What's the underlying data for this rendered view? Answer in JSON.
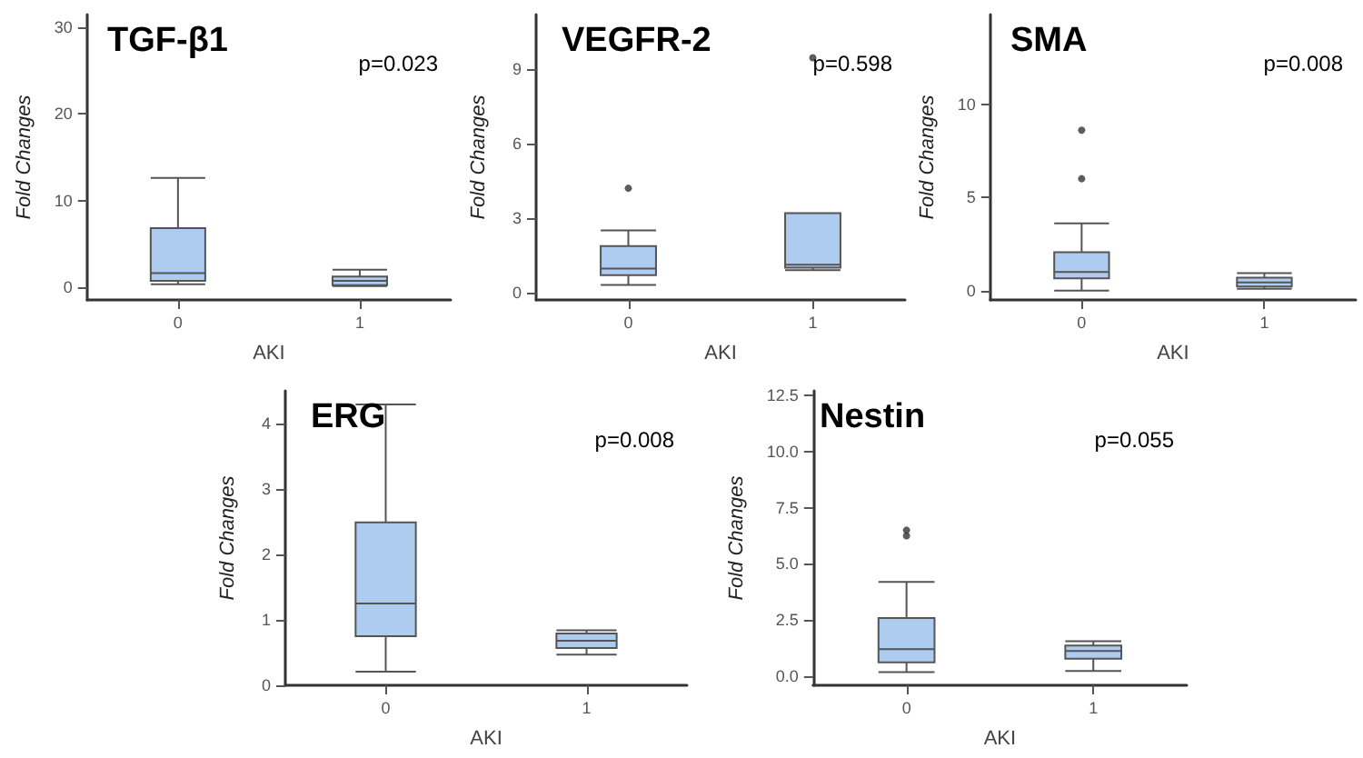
{
  "chart_data": [
    {
      "type": "box",
      "title": "TGF-β1",
      "annotations": [
        "p=0.023"
      ],
      "xlabel": "AKI",
      "ylabel": "Fold Changes",
      "categories": [
        "0",
        "1"
      ],
      "color": "#aecbf0",
      "grid": false,
      "ylim": [
        -1.5,
        31.5
      ],
      "yticks": [
        0,
        10,
        20,
        30
      ],
      "boxes": [
        {
          "low": 0.3,
          "q1": 0.7,
          "median": 1.6,
          "q3": 6.8,
          "high": 12.6
        },
        {
          "low": 0.1,
          "q1": 0.2,
          "median": 0.7,
          "q3": 1.2,
          "high": 2.0
        }
      ]
    },
    {
      "type": "box",
      "title": "VEGFR-2",
      "annotations": [
        "p=0.598"
      ],
      "xlabel": "AKI",
      "ylabel": "Fold Changes",
      "categories": [
        "0",
        "1"
      ],
      "color": "#aecbf0",
      "grid": false,
      "ylim": [
        -0.3,
        11.2
      ],
      "yticks": [
        0,
        3,
        6,
        9
      ],
      "boxes": [
        {
          "low": 0.3,
          "q1": 0.7,
          "median": 0.96,
          "q3": 1.87,
          "high": 2.5,
          "outliers": [
            4.2
          ]
        },
        {
          "low": 0.9,
          "q1": 1.0,
          "median": 1.12,
          "q3": 3.2,
          "high": 3.2,
          "outliers": [
            9.46
          ]
        }
      ]
    },
    {
      "type": "box",
      "title": "SMA",
      "annotations": [
        "p=0.008"
      ],
      "xlabel": "AKI",
      "ylabel": "Fold Changes",
      "categories": [
        "0",
        "1"
      ],
      "color": "#aecbf0",
      "grid": false,
      "ylim": [
        -0.5,
        14.8
      ],
      "yticks": [
        0,
        5,
        10
      ],
      "boxes": [
        {
          "low": 0.0,
          "q1": 0.66,
          "median": 1.0,
          "q3": 2.06,
          "high": 3.6,
          "outliers": [
            6.0,
            8.6
          ]
        },
        {
          "low": 0.1,
          "q1": 0.22,
          "median": 0.44,
          "q3": 0.69,
          "high": 0.94
        }
      ]
    },
    {
      "type": "box",
      "title": "ERG",
      "annotations": [
        "p=0.008"
      ],
      "xlabel": "AKI",
      "ylabel": "Fold Changes",
      "categories": [
        "0",
        "1"
      ],
      "color": "#aecbf0",
      "grid": false,
      "ylim": [
        0,
        4.5
      ],
      "yticks": [
        0,
        1,
        2,
        3,
        4
      ],
      "boxes": [
        {
          "low": 0.21,
          "q1": 0.75,
          "median": 1.25,
          "q3": 2.49,
          "high": 4.29
        },
        {
          "low": 0.47,
          "q1": 0.57,
          "median": 0.68,
          "q3": 0.79,
          "high": 0.84
        }
      ]
    },
    {
      "type": "box",
      "title": "Nestin",
      "annotations": [
        "p=0.055"
      ],
      "xlabel": "AKI",
      "ylabel": "Fold Changes",
      "categories": [
        "0",
        "1"
      ],
      "color": "#aecbf0",
      "grid": false,
      "ylim": [
        -0.4,
        12.7
      ],
      "yticks": [
        {
          "value": 0,
          "label": "0.0"
        },
        2.5,
        {
          "value": 5,
          "label": "5.0"
        },
        7.5,
        {
          "value": 10,
          "label": "10.0"
        },
        12.5
      ],
      "boxes": [
        {
          "low": 0.19,
          "q1": 0.62,
          "median": 1.21,
          "q3": 2.59,
          "high": 4.2,
          "outliers": [
            6.25,
            6.5
          ]
        },
        {
          "low": 0.24,
          "q1": 0.78,
          "median": 1.13,
          "q3": 1.37,
          "high": 1.56
        }
      ]
    }
  ]
}
